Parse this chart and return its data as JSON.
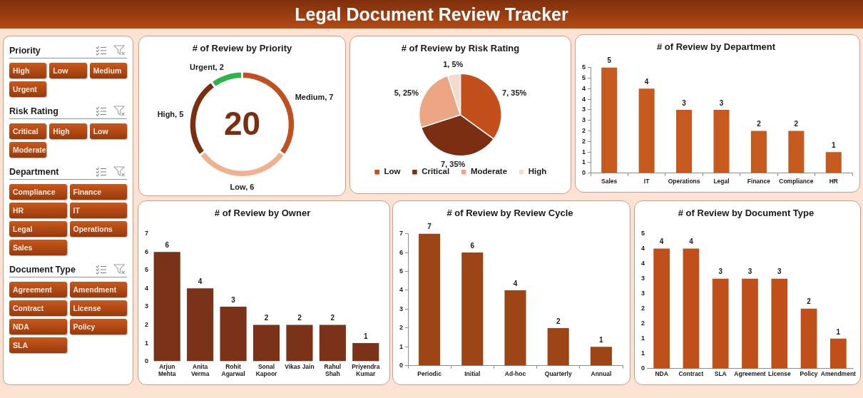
{
  "chart_data": [
    {
      "type": "other",
      "title": "Legal Document Review Tracker"
    },
    {
      "type": "other",
      "title": "Priority",
      "annotations": [
        "High",
        "Low",
        "Medium",
        "Urgent"
      ]
    },
    {
      "type": "other",
      "title": "Risk Rating",
      "annotations": [
        "Critical",
        "High",
        "Low",
        "Moderate"
      ]
    },
    {
      "type": "other",
      "title": "Department",
      "annotations": [
        "Compliance",
        "Finance",
        "HR",
        "IT",
        "Legal",
        "Operations",
        "Sales"
      ]
    },
    {
      "type": "other",
      "title": "Document Type",
      "annotations": [
        "Agreement",
        "Amendment",
        "Contract",
        "License",
        "NDA",
        "Policy",
        "SLA"
      ]
    },
    {
      "type": "donut",
      "title": "# of Review by Priority",
      "categories": [
        null,
        null,
        null,
        null
      ],
      "values": [
        7,
        6,
        5,
        2
      ],
      "colors": [
        "#c0501f",
        "#f1b08f",
        "#7a2f10",
        "#2fb24a"
      ],
      "value_labels": [
        "Medium, 7",
        "Low, 6",
        "High, 5",
        "Urgent, 2"
      ],
      "annotations": [
        "20"
      ]
    },
    {
      "type": "pie",
      "title": "# of Review by Risk Rating",
      "categories": [
        "Low",
        "Critical",
        "Moderate",
        "High"
      ],
      "values": [
        7,
        7,
        5,
        1
      ],
      "colors": [
        "#c24f1c",
        "#7b2e11",
        "#eca684",
        "#f5dace"
      ],
      "value_labels": [
        "7, 35%",
        "7, 35%",
        "5, 25%",
        "1, 5%"
      ],
      "legend": "bottom"
    },
    {
      "type": "bar",
      "title": "# of Review by Department",
      "categories": [
        "Sales",
        "IT",
        "Operations",
        "Legal",
        "Finance",
        "Compliance",
        "HR"
      ],
      "values": [
        5,
        4,
        3,
        3,
        2,
        2,
        1
      ],
      "color": "#c65a1e",
      "ylim": [
        0,
        5
      ],
      "yticks": [
        0,
        {
          "value": 0.5,
          "label": "1"
        },
        1,
        {
          "value": 1.5,
          "label": "2"
        },
        2,
        {
          "value": 2.5,
          "label": "3"
        },
        3,
        {
          "value": 3.5,
          "label": "4"
        },
        4,
        {
          "value": 4.5,
          "label": "5"
        },
        5
      ],
      "data_labels": true
    },
    {
      "type": "bar",
      "title": "# of Review by Owner",
      "categories": [
        "Arjun Mehta",
        "Anita Verma",
        "Rohit Agarwal",
        "Sonal Kapoor",
        "Vikas Jain",
        "Rahul Shah",
        "Priyendra Kumar"
      ],
      "values": [
        6,
        4,
        3,
        2,
        2,
        2,
        1
      ],
      "color": "#7a3218",
      "ylim": [
        0,
        7
      ],
      "yticks": [
        0,
        1,
        2,
        3,
        4,
        5,
        6,
        7
      ],
      "data_labels": true
    },
    {
      "type": "bar",
      "title": "# of Review by Review Cycle",
      "categories": [
        "Periodic",
        "Initial",
        "Ad-hoc",
        "Quarterly",
        "Annual"
      ],
      "values": [
        7,
        6,
        4,
        2,
        1
      ],
      "color": "#9c4416",
      "ylim": [
        0,
        7
      ],
      "yticks": [
        0,
        1,
        2,
        3,
        4,
        5,
        6,
        7
      ],
      "data_labels": true
    },
    {
      "type": "bar",
      "title": "# of Review by Document Type",
      "categories": [
        "NDA",
        "Contract",
        "SLA",
        "Agreement",
        "License",
        "Policy",
        "Amendment"
      ],
      "values": [
        4,
        4,
        3,
        3,
        3,
        2,
        1
      ],
      "color": "#c0501a",
      "ylim": [
        0,
        4.5
      ],
      "yticks": [
        0,
        {
          "value": 0.5,
          "label": "1"
        },
        1,
        {
          "value": 1.5,
          "label": "2"
        },
        2,
        {
          "value": 2.5,
          "label": "3"
        },
        3,
        {
          "value": 3.5,
          "label": "4"
        },
        4,
        {
          "value": 4.5,
          "label": "5"
        }
      ],
      "data_labels": true
    }
  ]
}
